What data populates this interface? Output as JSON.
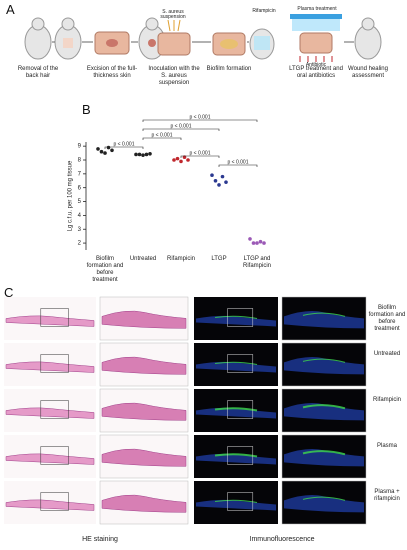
{
  "panel_a": {
    "label": "A",
    "steps": [
      "Removal of the back hair",
      "Excision of the full-thickness skin",
      "Inoculation with the S. aureus suspension",
      "Biofilm formation",
      "LTGP treatment and oral antibiotics",
      "Wound healing assessment"
    ],
    "suspension": "S. aureus suspension",
    "rifampicin": "Rifampicin",
    "plasma": "Plasma treatment",
    "antibiotic": "Antibiotic"
  },
  "chart_data": {
    "type": "scatter",
    "label": "B",
    "ylabel": "Lg c.f.u. per 100 mg tissue",
    "categories": [
      "Biofilm formation and before treatment",
      "Untreated",
      "Rifampicin",
      "LTGP",
      "LTGP and Rifampicin"
    ],
    "values": [
      [
        8.8,
        8.6,
        8.5,
        8.9,
        8.7
      ],
      [
        8.4,
        8.4,
        8.35,
        8.4,
        8.45
      ],
      [
        8.0,
        8.1,
        7.9,
        8.2,
        8.0
      ],
      [
        6.9,
        6.5,
        6.2,
        6.8,
        6.4
      ],
      [
        2.3,
        2.0,
        2.0,
        2.1,
        2.0
      ]
    ],
    "colors": [
      "#222222",
      "#222222",
      "#c0272d",
      "#2b3990",
      "#9b59b6"
    ],
    "ylim": [
      1.5,
      9.3
    ],
    "yticks": [
      2,
      3,
      4,
      5,
      6,
      7,
      8,
      9
    ],
    "brackets": [
      {
        "label": "p < 0.001",
        "groups": [
          1,
          4
        ]
      },
      {
        "label": "p < 0.001",
        "groups": [
          1,
          3
        ]
      },
      {
        "label": "p < 0.001",
        "groups": [
          1,
          2
        ]
      },
      {
        "label": "p < 0.001",
        "groups": [
          0,
          1
        ]
      },
      {
        "label": "p < 0.001",
        "groups": [
          2,
          3
        ]
      },
      {
        "label": "p < 0.001",
        "groups": [
          3,
          4
        ]
      }
    ]
  },
  "panel_c": {
    "label": "C",
    "rows": [
      "Biofilm formation and before treatment",
      "Untreated",
      "Rifampicin",
      "Plasma",
      "Plasma + rifampicin"
    ],
    "columns": [
      "HE staining",
      "Immunofluorescence"
    ]
  }
}
